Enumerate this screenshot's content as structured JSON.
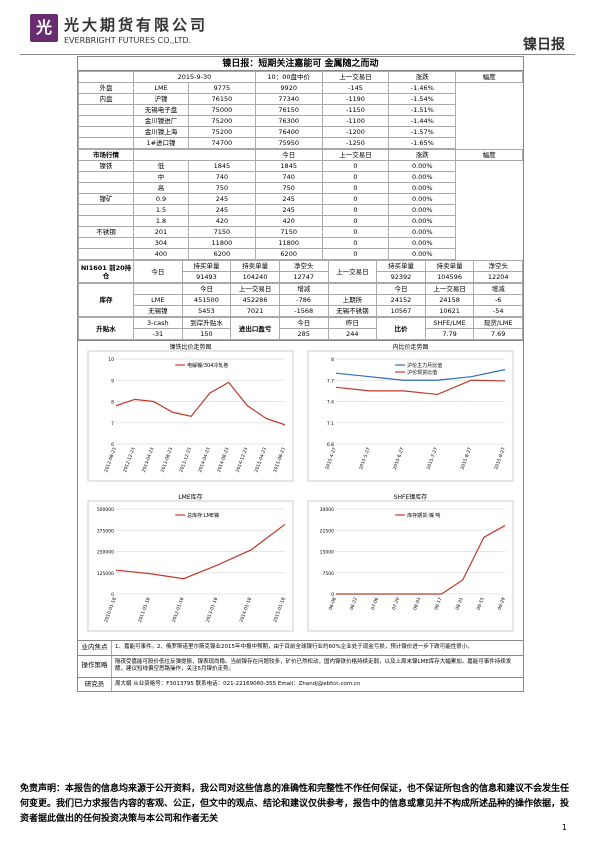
{
  "header": {
    "logo_char": "光",
    "cn_name": "光大期货有限公司",
    "en_name": "EVERBRIGHT FUTURES CO.,LTD.",
    "doc_type": "镍日报"
  },
  "report_title": "镍日报：短期关注嘉能可 金属随之而动",
  "table1": {
    "date": "2015-9-30",
    "col1": "10：00盘中价",
    "col2": "上一交易日",
    "col3": "涨跌",
    "col4": "幅度",
    "rows": [
      [
        "外盘",
        "LME",
        "9775",
        "9920",
        "-145",
        "-1.46%"
      ],
      [
        "内盘",
        "沪镍",
        "76150",
        "77340",
        "-1190",
        "-1.54%"
      ],
      [
        "",
        "无锡电子盘",
        "75000",
        "76150",
        "-1150",
        "-1.51%"
      ],
      [
        "",
        "金川镍进厂",
        "75200",
        "76300",
        "-1100",
        "-1.44%"
      ],
      [
        "",
        "金川镍上海",
        "75200",
        "76400",
        "-1200",
        "-1.57%"
      ],
      [
        "",
        "1#进口镍",
        "74700",
        "75950",
        "-1250",
        "-1.65%"
      ]
    ]
  },
  "table2": {
    "section": "市场行情",
    "h1": "今日",
    "h2": "上一交易日",
    "h3": "涨跌",
    "h4": "幅度",
    "rows": [
      [
        "镍铁",
        "低",
        "1845",
        "1845",
        "0",
        "0.00%"
      ],
      [
        "",
        "中",
        "740",
        "740",
        "0",
        "0.00%"
      ],
      [
        "",
        "高",
        "750",
        "750",
        "0",
        "0.00%"
      ],
      [
        "镍矿",
        "0.9",
        "245",
        "245",
        "0",
        "0.00%"
      ],
      [
        "",
        "1.5",
        "245",
        "245",
        "0",
        "0.00%"
      ],
      [
        "",
        "1.8",
        "420",
        "420",
        "0",
        "0.00%"
      ],
      [
        "不锈钢",
        "201",
        "7150",
        "7150",
        "0",
        "0.00%"
      ],
      [
        "",
        "304",
        "11800",
        "11800",
        "0",
        "0.00%"
      ],
      [
        "",
        "400",
        "6200",
        "6200",
        "0",
        "0.00%"
      ]
    ]
  },
  "pos": {
    "label": "NI1601 前20持仓",
    "today": "今日",
    "h1": "持买单量",
    "h2": "持卖单量",
    "h3": "净空头",
    "prev": "上一交易日",
    "h4": "持买单量",
    "h5": "持卖单量",
    "h6": "净空头",
    "v1": "91493",
    "v2": "104240",
    "v3": "12747",
    "v4": "92392",
    "v5": "104596",
    "v6": "12204"
  },
  "stock": {
    "label": "库存",
    "h1": "今日",
    "h2": "上一交易日",
    "h3": "增减",
    "h4": "今日",
    "h5": "上一交易日",
    "h6": "增减",
    "r1": [
      "LME",
      "451500",
      "452286",
      "-786",
      "上期所",
      "24152",
      "24158",
      "-6"
    ],
    "r2": [
      "无锡镍",
      "5453",
      "7021",
      "-1568",
      "无锡不锈钢",
      "10567",
      "10621",
      "-54"
    ]
  },
  "prem": {
    "label": "升贴水",
    "h1": "3-cash",
    "h2": "到岸升贴水",
    "h3": "进出口盈亏",
    "h4": "今日",
    "h5": "昨日",
    "h6": "比价",
    "h7": "SHFE/LME",
    "h8": "现货/LME",
    "v1": "-31",
    "v2": "150",
    "v3": "285",
    "v4": "244",
    "v5": "7.79",
    "v6": "7.69"
  },
  "charts": {
    "c1_title": "镍铁比价走势图",
    "c1_l1": "电解镍/304冷轧卷",
    "c2_title": "内比价走势图",
    "c2_l1": "沪伦主力月比值",
    "c2_l2": "沪伦现货比值",
    "c3_title": "LME库存",
    "c3_l1": "总库存:LME镍",
    "c4_title": "SHFE镍库存",
    "c4_l1": "库存期货:镍 吨"
  },
  "chart_data": [
    {
      "type": "line",
      "title": "镍铁比价走势图",
      "categories": [
        "2012-08-23",
        "2012-12-23",
        "2013-04-23",
        "2013-08-23",
        "2013-12-23",
        "2014-04-23",
        "2014-08-23",
        "2014-12-23",
        "2015-04-23",
        "2015-08-23"
      ],
      "series": [
        {
          "name": "电解镍/304冷轧卷",
          "values": [
            7.8,
            8.1,
            8.0,
            7.5,
            7.3,
            8.4,
            8.9,
            7.8,
            7.2,
            6.9
          ]
        }
      ],
      "ylim": [
        6,
        10
      ]
    },
    {
      "type": "line",
      "title": "内比价走势图",
      "categories": [
        "2015-4-27",
        "2015-5-27",
        "2015-6-27",
        "2015-7-27",
        "2015-8-27",
        "2015-9-27"
      ],
      "series": [
        {
          "name": "沪伦主力月比值",
          "values": [
            7.8,
            7.75,
            7.7,
            7.7,
            7.75,
            7.85
          ]
        },
        {
          "name": "沪伦现货比值",
          "values": [
            7.6,
            7.55,
            7.55,
            7.5,
            7.7,
            7.69
          ]
        }
      ],
      "ylim": [
        6.8,
        8.0
      ]
    },
    {
      "type": "area",
      "title": "LME库存",
      "categories": [
        "2010-01-18",
        "2011-01-18",
        "2012-01-18",
        "2013-01-18",
        "2014-01-18",
        "2015-01-18"
      ],
      "series": [
        {
          "name": "总库存:LME镍",
          "values": [
            140000,
            120000,
            90000,
            170000,
            260000,
            410000
          ]
        }
      ],
      "ylim": [
        0,
        500000
      ]
    },
    {
      "type": "line",
      "title": "SHFE镍库存",
      "categories": [
        "06-08",
        "06-22",
        "07-06",
        "07-20",
        "08-03",
        "08-17",
        "08-31",
        "09-15",
        "09-29"
      ],
      "series": [
        {
          "name": "库存期货:镍 吨",
          "values": [
            0,
            0,
            0,
            0,
            0,
            0,
            5000,
            20000,
            24152
          ]
        }
      ],
      "ylim": [
        0,
        30000
      ]
    }
  ],
  "news": {
    "k1": "业内焦点",
    "v1": "1、嘉能可事件。2、俄罗斯诺里尔斯克镍业2015年中报中预期，由于目前全球镍行业约60%企业处于现金亏损，预计镍价进一步下跌可能性很小。",
    "k2": "操作策略",
    "v2": "隔夜受嘉能可股价低位反弹提振，镍表现尚稳。当前镍存在问题较多，矿价已然松动，国内镍铁价格持续走弱，以及上周末镍LME库存大幅累加。嘉能可事件持续发酵，建议短线偏空思路操作，关注5月镍价走势。",
    "k3": "研究员",
    "v3": "周大娟  从业资格号：F3013795  联系电话：021-22169060-355  Email：Zhandj@ebfcn.com.cn"
  },
  "footer": {
    "text": "免责声明：本报告的信息均来源于公开资料，我公司对这些信息的准确性和完整性不作任何保证，也不保证所包含的信息和建议不会发生任何变更。我们已力求报告内容的客观、公正，但文中的观点、结论和建议仅供参考，报告中的信息或意见并不构成所述品种的操作依据，投资者据此做出的任何投资决策与本公司和作者无关",
    "page": "1"
  }
}
